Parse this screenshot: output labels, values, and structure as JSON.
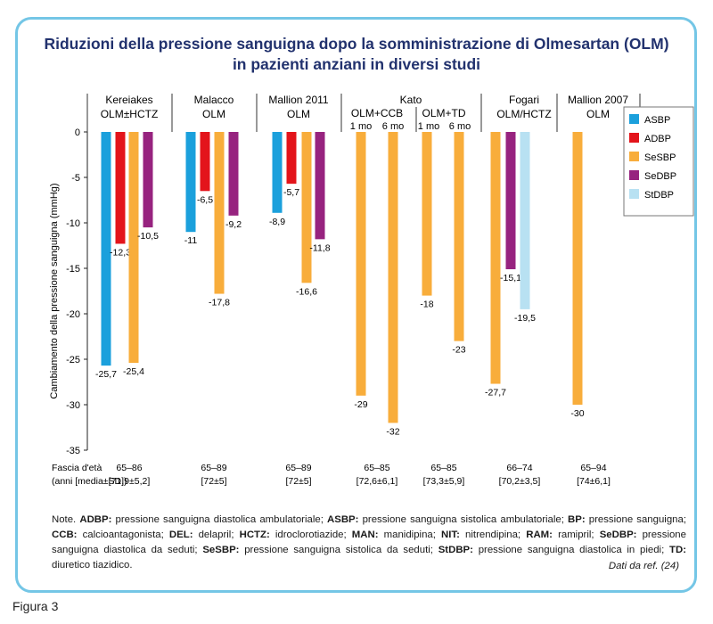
{
  "figure_label": "Figura 3",
  "title_line1": "Riduzioni della pressione sanguigna dopo la somministrazione di Olmesartan (OLM)",
  "title_line2": "in pazienti anziani in diversi studi",
  "note_prefix": "Note.",
  "note_terms": [
    {
      "term": "ADBP:",
      "def": " pressione sanguigna diastolica ambulatoriale; "
    },
    {
      "term": "ASBP:",
      "def": " pressione sanguigna sistolica ambulatoriale; "
    },
    {
      "term": "BP:",
      "def": " pressione sanguigna; "
    },
    {
      "term": "CCB:",
      "def": " calcioantagonista; "
    },
    {
      "term": "DEL:",
      "def": " delapril; "
    },
    {
      "term": "HCTZ:",
      "def": " idroclorotiazide; "
    },
    {
      "term": "MAN:",
      "def": " manidipina; "
    },
    {
      "term": "NIT:",
      "def": " nitrendipina; "
    },
    {
      "term": "RAM:",
      "def": " ramipril; "
    },
    {
      "term": "SeDBP:",
      "def": " pressione sanguigna diastolica da seduti; "
    },
    {
      "term": "SeSBP:",
      "def": " pressione sanguigna sistolica da seduti; "
    },
    {
      "term": "StDBP:",
      "def": " pressione sanguigna diastolica in piedi; "
    },
    {
      "term": "TD:",
      "def": " diuretico tiazidico."
    }
  ],
  "source": "Dati da ref. (24)",
  "colors": {
    "ASBP": "#1ba0dc",
    "ADBP": "#e3141b",
    "SeSBP": "#f8ad3b",
    "SeDBP": "#97237f",
    "StDBP": "#b8e1f2"
  },
  "chart_data": {
    "type": "bar",
    "ylabel": "Cambiamento della pressione sanguigna (mmHg)",
    "ylim": [
      -35,
      0
    ],
    "yticks": [
      0,
      -5,
      -10,
      -15,
      -20,
      -25,
      -30,
      -35
    ],
    "legend": [
      "ASBP",
      "ADBP",
      "SeSBP",
      "SeDBP",
      "StDBP"
    ],
    "legend_position": "right",
    "age_row_label_1": "Fascia d'età",
    "age_row_label_2": "(anni [media±SD])",
    "groups": [
      {
        "label1": "Kereiakes",
        "label2": "OLM±HCTZ",
        "age": "65–86",
        "age_sd": "[71,9±5,2]",
        "bars": [
          {
            "series": "ASBP",
            "value": -25.7,
            "label": "-25,7"
          },
          {
            "series": "ADBP",
            "value": -12.3,
            "label": "-12,3"
          },
          {
            "series": "SeSBP",
            "value": -25.4,
            "label": "-25,4"
          },
          {
            "series": "SeDBP",
            "value": -10.5,
            "label": "-10,5"
          }
        ]
      },
      {
        "label1": "Malacco",
        "label2": "OLM",
        "age": "65–89",
        "age_sd": "[72±5]",
        "bars": [
          {
            "series": "ASBP",
            "value": -11,
            "label": "-11"
          },
          {
            "series": "ADBP",
            "value": -6.5,
            "label": "-6,5"
          },
          {
            "series": "SeSBP",
            "value": -17.8,
            "label": "-17,8"
          },
          {
            "series": "SeDBP",
            "value": -9.2,
            "label": "-9,2"
          }
        ]
      },
      {
        "label1": "Mallion 2011",
        "label2": "OLM",
        "age": "65–89",
        "age_sd": "[72±5]",
        "bars": [
          {
            "series": "ASBP",
            "value": -8.9,
            "label": "-8,9"
          },
          {
            "series": "ADBP",
            "value": -5.7,
            "label": "-5,7"
          },
          {
            "series": "SeSBP",
            "value": -16.6,
            "label": "-16,6"
          },
          {
            "series": "SeDBP",
            "value": -11.8,
            "label": "-11,8"
          }
        ]
      },
      {
        "label1": "Kato",
        "label2": "",
        "sub": [
          {
            "label": "OLM+CCB",
            "age": "65–85",
            "age_sd": "[72,6±6,1]",
            "bars": [
              {
                "period": "1 mo",
                "series": "SeSBP",
                "value": -29,
                "label": "-29"
              },
              {
                "period": "6 mo",
                "series": "SeSBP",
                "value": -32,
                "label": "-32"
              }
            ]
          },
          {
            "label": "OLM+TD",
            "age": "65–85",
            "age_sd": "[73,3±5,9]",
            "bars": [
              {
                "period": "1 mo",
                "series": "SeSBP",
                "value": -18,
                "label": "-18"
              },
              {
                "period": "6 mo",
                "series": "SeSBP",
                "value": -23,
                "label": "-23"
              }
            ]
          }
        ]
      },
      {
        "label1": "Fogari",
        "label2": "OLM/HCTZ",
        "age": "66–74",
        "age_sd": "[70,2±3,5]",
        "bars": [
          {
            "series": "SeSBP",
            "value": -27.7,
            "label": "-27,7"
          },
          {
            "series": "SeDBP",
            "value": -15.1,
            "label": "-15,1"
          },
          {
            "series": "StDBP",
            "value": -19.5,
            "label": "-19,5"
          }
        ]
      },
      {
        "label1": "Mallion 2007",
        "label2": "OLM",
        "age": "65–94",
        "age_sd": "[74±6,1]",
        "bars": [
          {
            "series": "SeSBP",
            "value": -30,
            "label": "-30"
          }
        ]
      }
    ]
  }
}
